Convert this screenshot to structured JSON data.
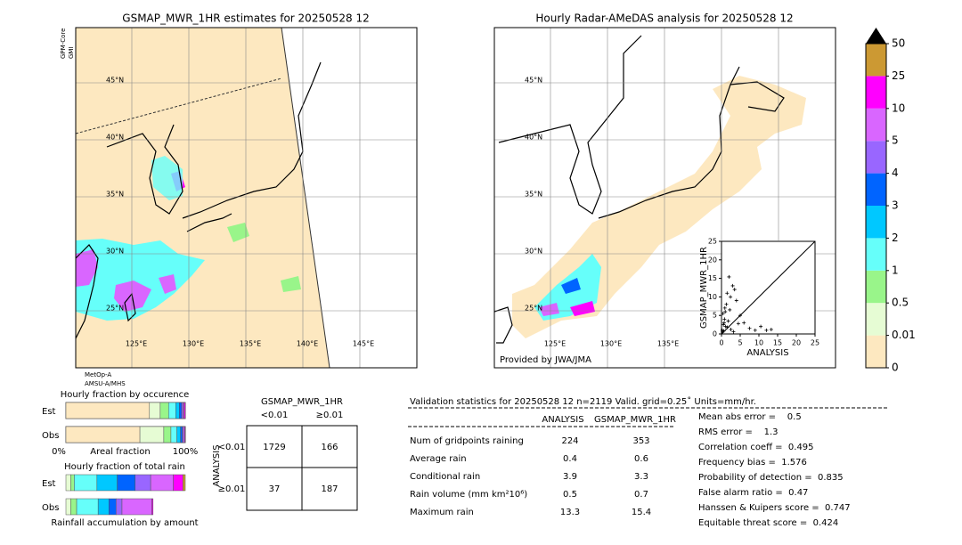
{
  "left_map": {
    "title": "GSMAP_MWR_1HR estimates for 20250528 12",
    "sensor_top": [
      "GPM-Core",
      "GMI"
    ],
    "sensor_bottom": [
      "MetOp-A",
      "AMSU-A/MHS"
    ],
    "lat_labels": [
      "45°N",
      "40°N",
      "35°N",
      "30°N",
      "25°N"
    ],
    "lon_labels": [
      "125°E",
      "130°E",
      "135°E",
      "140°E",
      "145°E"
    ]
  },
  "right_map": {
    "title": "Hourly Radar-AMeDAS analysis for 20250528 12",
    "credit": "Provided by JWA/JMA",
    "lat_labels": [
      "45°N",
      "40°N",
      "35°N",
      "30°N",
      "25°N"
    ],
    "lon_labels": [
      "125°E",
      "130°E",
      "135°E"
    ]
  },
  "scatter": {
    "type": "scatter",
    "xlabel": "ANALYSIS",
    "ylabel": "GSMAP_MWR_1HR",
    "xlim": [
      0,
      25
    ],
    "ylim": [
      0,
      25
    ],
    "xticks": [
      0,
      5,
      10,
      15,
      20,
      25
    ],
    "yticks": [
      0,
      5,
      10,
      15,
      20,
      25
    ],
    "x": [
      0.2,
      0.5,
      0.8,
      1.0,
      1.3,
      1.5,
      2.0,
      2.4,
      3.0,
      3.5,
      4.0,
      5.0,
      6.0,
      7.5,
      9.0,
      10.5,
      12.0,
      13.3,
      0.3,
      0.6,
      1.1,
      1.8,
      2.5,
      0.4,
      0.9,
      1.6,
      3.2,
      4.5,
      0.7,
      2.2
    ],
    "y": [
      1.0,
      2.5,
      4.0,
      6.0,
      8.0,
      11.0,
      15.4,
      10.0,
      13.0,
      12.0,
      9.0,
      5.0,
      3.0,
      1.5,
      1.0,
      2.0,
      1.0,
      1.2,
      0.5,
      0.8,
      2.0,
      3.5,
      1.2,
      5.5,
      7.0,
      1.8,
      0.6,
      2.8,
      3.0,
      6.5
    ]
  },
  "colorbar": {
    "levels": [
      0,
      0.01,
      0.5,
      1,
      2,
      3,
      4,
      5,
      10,
      25,
      50
    ],
    "colors": [
      "#fde8c0",
      "#e6fcd4",
      "#99f58a",
      "#66fffa",
      "#00c8ff",
      "#0064ff",
      "#9966ff",
      "#d966ff",
      "#ff00ff",
      "#cc9933"
    ]
  },
  "occurrence": {
    "title": "Hourly fraction by occurence",
    "rows": [
      "Est",
      "Obs"
    ],
    "xlabel": "Areal fraction",
    "x_start": "0%",
    "x_end": "100%",
    "est": [
      0.7,
      0.09,
      0.07,
      0.06,
      0.03,
      0.02,
      0.01,
      0.01,
      0.01,
      0
    ],
    "obs": [
      0.62,
      0.2,
      0.06,
      0.05,
      0.03,
      0.015,
      0.01,
      0.01,
      0.005,
      0
    ]
  },
  "total_rain": {
    "title": "Hourly fraction of total rain",
    "rows": [
      "Est",
      "Obs"
    ],
    "xlabel": "Rainfall accumulation by amount",
    "est": [
      0,
      0.04,
      0.03,
      0.19,
      0.17,
      0.15,
      0.13,
      0.19,
      0.08,
      0.02
    ],
    "obs": [
      0,
      0.04,
      0.05,
      0.18,
      0.09,
      0.06,
      0.05,
      0.25,
      0.01,
      0
    ]
  },
  "contingency": {
    "col_title": "GSMAP_MWR_1HR",
    "cols": [
      "<0.01",
      "≥0.01"
    ],
    "row_title": "ANALYSIS",
    "rows": [
      "<0.01",
      "≥0.01"
    ],
    "cells": [
      [
        1729,
        166
      ],
      [
        37,
        187
      ]
    ]
  },
  "validation": {
    "title": "Validation statistics for 20250528 12  n=2119 Valid. grid=0.25˚ Units=mm/hr.",
    "columns": [
      "ANALYSIS",
      "GSMAP_MWR_1HR"
    ],
    "rows": [
      [
        "Num of gridpoints raining",
        224,
        353
      ],
      [
        "Average rain",
        0.4,
        0.6
      ],
      [
        "Conditional rain",
        3.9,
        3.3
      ],
      [
        "Rain volume (mm km²10⁶)",
        0.5,
        0.7
      ],
      [
        "Maximum rain",
        13.3,
        15.4
      ]
    ],
    "scores": [
      [
        "Mean abs error =    ",
        0.5
      ],
      [
        "RMS error =    ",
        1.3
      ],
      [
        "Correlation coeff =  ",
        0.495
      ],
      [
        "Frequency bias =  ",
        1.576
      ],
      [
        "Probability of detection =  ",
        0.835
      ],
      [
        "False alarm ratio =  ",
        0.47
      ],
      [
        "Hanssen & Kuipers score =  ",
        0.747
      ],
      [
        "Equitable threat score =  ",
        0.424
      ]
    ]
  }
}
